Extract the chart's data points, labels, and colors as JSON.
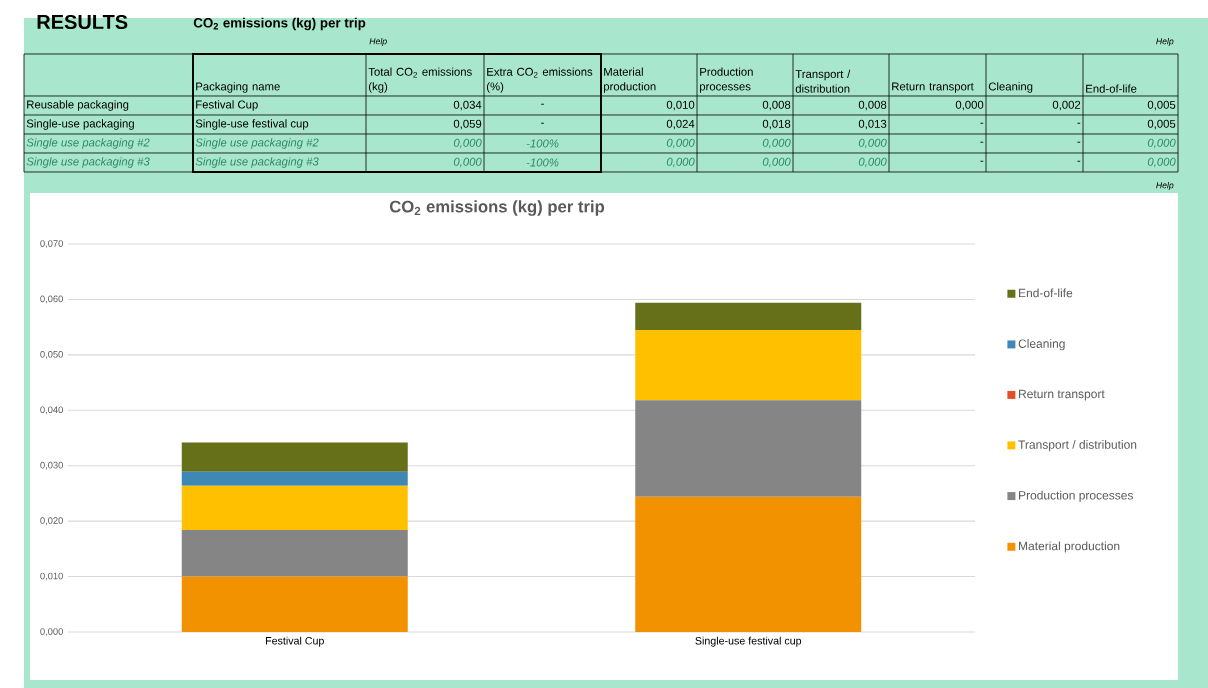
{
  "chart_data": [
    {
      "type": "other",
      "title": "RESULTS",
      "subtitle": "CO$_{2}$ emissions (kg) per trip",
      "annotations": [
        "Help",
        "Help",
        "Packaging name",
        "Total CO$_{2}$ emissions (kg)",
        "Extra CO$_{2}$ emissions (%)",
        "Material production",
        "Production processes",
        "Transport / distribution",
        "Return transport",
        "Cleaning",
        "End-of-life",
        "Reusable packaging",
        "Festival Cup",
        "0,034",
        "-",
        "0,010",
        "0,008",
        "0,008",
        "0,000",
        "0,002",
        "0,005",
        "Single-use packaging",
        "Single-use festival cup",
        "0,059",
        "-",
        "0,024",
        "0,018",
        "0,013",
        "-",
        "-",
        "0,005",
        "Single use packaging #2",
        "Single use packaging #2",
        "0,000",
        "-100%",
        "0,000",
        "0,000",
        "0,000",
        "-",
        "-",
        "0,000",
        "Single use packaging #3",
        "Single use packaging #3",
        "0,000",
        "-100%",
        "0,000",
        "0,000",
        "0,000",
        "-",
        "-",
        "0,000",
        "Help"
      ]
    },
    {
      "type": "bar",
      "title": "CO$_{2}$ emissions (kg) per trip",
      "stacked": true,
      "categories": [
        "Festival Cup",
        "Single-use festival cup"
      ],
      "series": [
        {
          "name": "Material production",
          "color": "#f39200",
          "values": [
            0.01,
            0.0244
          ]
        },
        {
          "name": "Production processes",
          "color": "#858585",
          "values": [
            0.0084,
            0.0174
          ]
        },
        {
          "name": "Transport / distribution",
          "color": "#ffc000",
          "values": [
            0.008,
            0.0127
          ]
        },
        {
          "name": "Return transport",
          "color": "#e0502a",
          "values": [
            0,
            0
          ]
        },
        {
          "name": "Cleaning",
          "color": "#3f87b5",
          "values": [
            0.0025,
            0
          ]
        },
        {
          "name": "End-of-life",
          "color": "#667019",
          "values": [
            0.0053,
            0.0049
          ]
        }
      ],
      "ylim": [
        0,
        0.07
      ],
      "yticks": [
        {
          "value": 0,
          "label": "0,000"
        },
        {
          "value": 0.01,
          "label": "0,010"
        },
        {
          "value": 0.02,
          "label": "0,020"
        },
        {
          "value": 0.03,
          "label": "0,030"
        },
        {
          "value": 0.04,
          "label": "0,040"
        },
        {
          "value": 0.05,
          "label": "0,050"
        },
        {
          "value": 0.06,
          "label": "0,060"
        },
        {
          "value": 0.07,
          "label": "0,070"
        }
      ],
      "grid": "y",
      "legend": "right"
    }
  ]
}
